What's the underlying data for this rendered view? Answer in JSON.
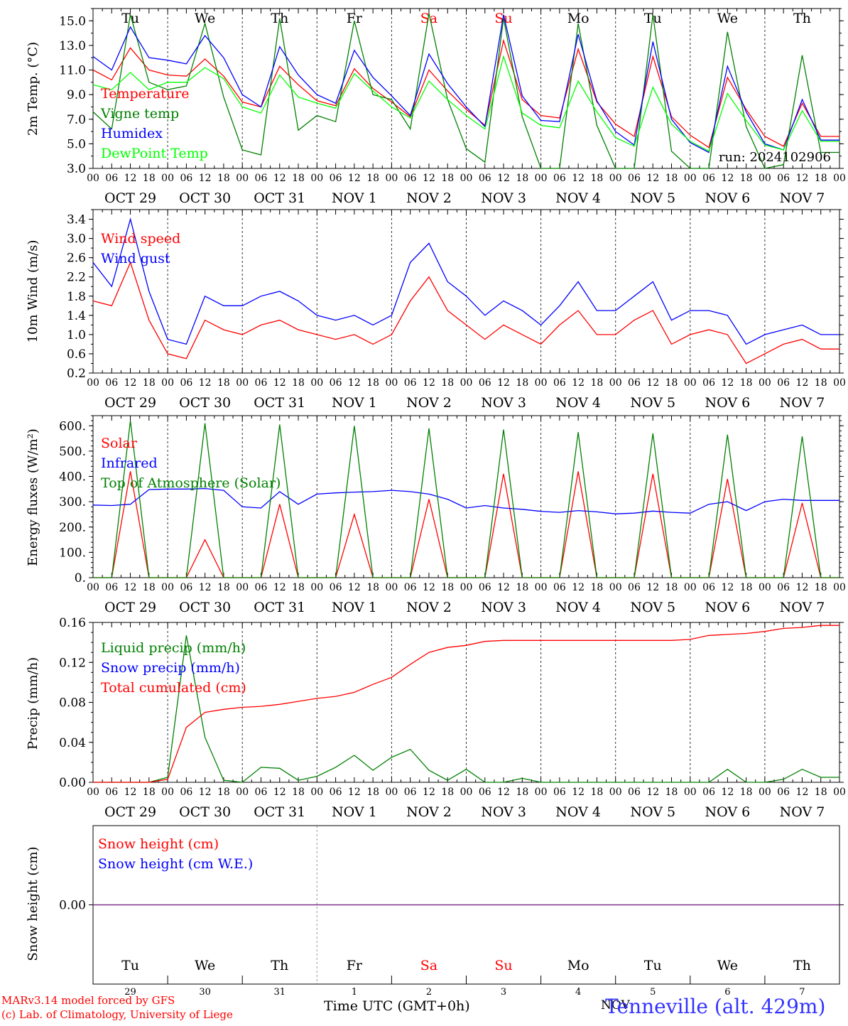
{
  "chart_data": [
    {
      "type": "line",
      "ylabel": "2m Temp. (°C)",
      "ylim": [
        3.0,
        16.0
      ],
      "yticks": [
        "3.0",
        "5.0",
        "7.0",
        "9.0",
        "11.0",
        "13.0",
        "15.0"
      ],
      "legend": [
        "Temperature",
        "Vigne temp",
        "Humidex",
        "DewPoint Temp"
      ],
      "legend_placement": "left",
      "run_label": "run: 2024102906",
      "x_hours": [
        0,
        6,
        12,
        18,
        24,
        30,
        36,
        42,
        48,
        54,
        60,
        66,
        72,
        78,
        84,
        90,
        96,
        102,
        108,
        114,
        120,
        126,
        132,
        138,
        144,
        150,
        156,
        162,
        168,
        174,
        180,
        186,
        192,
        198,
        204,
        210,
        216,
        222,
        228,
        234
      ],
      "series": [
        {
          "name": "Temperature",
          "color": "#ff0000",
          "values": [
            11.0,
            10.2,
            12.8,
            11.0,
            10.6,
            10.5,
            11.9,
            10.5,
            8.4,
            8.0,
            11.3,
            9.8,
            8.5,
            8.1,
            11.1,
            9.5,
            8.4,
            7.2,
            11.0,
            9.3,
            7.8,
            6.5,
            13.4,
            8.6,
            7.3,
            7.1,
            12.7,
            8.4,
            6.6,
            5.6,
            12.1,
            7.2,
            5.7,
            4.7,
            10.4,
            7.8,
            5.6,
            4.8,
            8.3,
            5.6
          ]
        },
        {
          "name": "Vigne temp",
          "color": "#008000",
          "values": [
            7.6,
            6.2,
            15.5,
            10.0,
            9.4,
            9.7,
            14.8,
            8.8,
            4.5,
            4.1,
            15.2,
            6.1,
            7.3,
            6.8,
            15.0,
            9.0,
            8.6,
            6.2,
            15.6,
            8.6,
            4.6,
            3.5,
            15.2,
            7.2,
            3.0,
            3.0,
            14.8,
            6.5,
            3.0,
            3.0,
            15.5,
            4.4,
            3.0,
            3.0,
            14.1,
            6.4,
            3.0,
            3.3,
            12.2,
            4.3
          ]
        },
        {
          "name": "Humidex",
          "color": "#0000ff",
          "values": [
            12.1,
            11.0,
            14.5,
            12.0,
            11.8,
            11.5,
            13.8,
            12.0,
            9.0,
            8.0,
            12.9,
            10.6,
            9.0,
            8.3,
            12.6,
            10.4,
            8.9,
            7.3,
            12.3,
            9.9,
            8.0,
            6.4,
            15.5,
            8.9,
            6.9,
            6.8,
            13.9,
            8.5,
            6.0,
            4.9,
            13.3,
            7.0,
            5.1,
            4.3,
            11.3,
            7.6,
            5.0,
            4.5,
            8.6,
            5.3
          ]
        },
        {
          "name": "DewPoint Temp",
          "color": "#00ff00",
          "values": [
            9.8,
            9.4,
            10.8,
            9.4,
            10.0,
            10.0,
            11.2,
            10.3,
            8.0,
            7.5,
            10.6,
            8.8,
            8.3,
            7.9,
            10.7,
            9.3,
            8.0,
            7.1,
            10.1,
            8.6,
            7.3,
            6.2,
            12.1,
            7.5,
            6.5,
            6.3,
            10.1,
            7.6,
            5.5,
            4.8,
            9.6,
            6.6,
            5.2,
            4.4,
            9.1,
            6.9,
            4.9,
            4.5,
            7.7,
            5.2
          ]
        }
      ]
    },
    {
      "type": "line",
      "ylabel": "10m Wind (m/s)",
      "ylim": [
        0.2,
        3.6
      ],
      "yticks": [
        "0.2",
        "0.6",
        "1.0",
        "1.4",
        "1.8",
        "2.2",
        "2.6",
        "3.0",
        "3.4"
      ],
      "legend": [
        "Wind speed",
        "Wind gust"
      ],
      "legend_placement": "left",
      "x_hours": [
        0,
        6,
        12,
        18,
        24,
        30,
        36,
        42,
        48,
        54,
        60,
        66,
        72,
        78,
        84,
        90,
        96,
        102,
        108,
        114,
        120,
        126,
        132,
        138,
        144,
        150,
        156,
        162,
        168,
        174,
        180,
        186,
        192,
        198,
        204,
        210,
        216,
        222,
        228,
        234
      ],
      "series": [
        {
          "name": "Wind speed",
          "color": "#ff0000",
          "values": [
            1.7,
            1.6,
            2.5,
            1.3,
            0.6,
            0.5,
            1.3,
            1.1,
            1.0,
            1.2,
            1.3,
            1.1,
            1.0,
            0.9,
            1.0,
            0.8,
            1.0,
            1.7,
            2.2,
            1.5,
            1.2,
            0.9,
            1.2,
            1.0,
            0.8,
            1.2,
            1.5,
            1.0,
            1.0,
            1.3,
            1.5,
            0.8,
            1.0,
            1.1,
            1.0,
            0.4,
            0.6,
            0.8,
            0.9,
            0.7
          ]
        },
        {
          "name": "Wind gust",
          "color": "#0000ff",
          "values": [
            2.5,
            2.0,
            3.4,
            1.9,
            0.9,
            0.8,
            1.8,
            1.6,
            1.6,
            1.8,
            1.9,
            1.7,
            1.4,
            1.3,
            1.4,
            1.2,
            1.4,
            2.5,
            2.9,
            2.1,
            1.8,
            1.4,
            1.7,
            1.5,
            1.2,
            1.6,
            2.1,
            1.5,
            1.5,
            1.8,
            2.1,
            1.3,
            1.5,
            1.5,
            1.4,
            0.8,
            1.0,
            1.1,
            1.2,
            1.0
          ]
        }
      ]
    },
    {
      "type": "line",
      "ylabel": "Energy fluxes (W/m²)",
      "ylim": [
        0,
        640
      ],
      "yticks": [
        "0.",
        "100.",
        "200.",
        "300.",
        "400.",
        "500.",
        "600."
      ],
      "legend": [
        "Solar",
        "Infrared",
        "Top of Atmosphere (Solar)"
      ],
      "legend_placement": "left",
      "x_hours": [
        0,
        6,
        12,
        18,
        24,
        30,
        36,
        42,
        48,
        54,
        60,
        66,
        72,
        78,
        84,
        90,
        96,
        102,
        108,
        114,
        120,
        126,
        132,
        138,
        144,
        150,
        156,
        162,
        168,
        174,
        180,
        186,
        192,
        198,
        204,
        210,
        216,
        222,
        228,
        234
      ],
      "series": [
        {
          "name": "Solar",
          "color": "#ff0000",
          "values": [
            0,
            0,
            420,
            0,
            0,
            0,
            150,
            0,
            0,
            0,
            290,
            0,
            0,
            0,
            250,
            0,
            0,
            0,
            310,
            0,
            0,
            0,
            410,
            0,
            0,
            0,
            420,
            0,
            0,
            0,
            410,
            0,
            0,
            0,
            390,
            0,
            0,
            0,
            295,
            0
          ]
        },
        {
          "name": "Infrared",
          "color": "#0000ff",
          "values": [
            287,
            285,
            290,
            348,
            350,
            350,
            352,
            345,
            280,
            275,
            340,
            290,
            330,
            335,
            338,
            340,
            345,
            340,
            330,
            310,
            275,
            285,
            275,
            270,
            262,
            258,
            265,
            260,
            252,
            255,
            263,
            258,
            255,
            290,
            300,
            265,
            300,
            310,
            305,
            305
          ]
        },
        {
          "name": "Top of Atmosphere (Solar)",
          "color": "#008000",
          "values": [
            0,
            0,
            620,
            0,
            0,
            0,
            610,
            0,
            0,
            0,
            605,
            0,
            0,
            0,
            600,
            0,
            0,
            0,
            590,
            0,
            0,
            0,
            585,
            0,
            0,
            0,
            575,
            0,
            0,
            0,
            570,
            0,
            0,
            0,
            565,
            0,
            0,
            0,
            558,
            0
          ]
        }
      ]
    },
    {
      "type": "line",
      "ylabel": "Precip (mm/h)",
      "ylim": [
        0,
        0.16
      ],
      "yticks": [
        "0.00",
        "0.04",
        "0.08",
        "0.12",
        "0.16"
      ],
      "legend": [
        "Liquid precip (mm/h)",
        "Snow precip (mm/h)",
        "Total cumulated (cm)"
      ],
      "legend_placement": "left",
      "x_hours": [
        0,
        6,
        12,
        18,
        24,
        30,
        36,
        42,
        48,
        54,
        60,
        66,
        72,
        78,
        84,
        90,
        96,
        102,
        108,
        114,
        120,
        126,
        132,
        138,
        144,
        150,
        156,
        162,
        168,
        174,
        180,
        186,
        192,
        198,
        204,
        210,
        216,
        222,
        228,
        234
      ],
      "series": [
        {
          "name": "Liquid precip (mm/h)",
          "color": "#008000",
          "values": [
            0,
            0,
            0,
            0,
            0.005,
            0.147,
            0.045,
            0.002,
            0,
            0.015,
            0.014,
            0.002,
            0.006,
            0.015,
            0.027,
            0.012,
            0.025,
            0.033,
            0.012,
            0.002,
            0.013,
            0,
            0,
            0.004,
            0,
            0,
            0,
            0,
            0,
            0,
            0,
            0,
            0,
            0,
            0.013,
            0,
            0,
            0.003,
            0.013,
            0.005
          ]
        },
        {
          "name": "Snow precip (mm/h)",
          "color": "#0000ff",
          "values": [
            0,
            0,
            0,
            0,
            0,
            0,
            0,
            0,
            0,
            0,
            0,
            0,
            0,
            0,
            0,
            0,
            0,
            0,
            0,
            0,
            0,
            0,
            0,
            0,
            0,
            0,
            0,
            0,
            0,
            0,
            0,
            0,
            0,
            0,
            0,
            0,
            0,
            0,
            0,
            0
          ]
        },
        {
          "name": "Total cumulated (cm)",
          "color": "#ff0000",
          "values": [
            0,
            0,
            0,
            0,
            0.003,
            0.055,
            0.07,
            0.073,
            0.075,
            0.076,
            0.078,
            0.081,
            0.084,
            0.086,
            0.09,
            0.098,
            0.105,
            0.118,
            0.13,
            0.135,
            0.137,
            0.141,
            0.142,
            0.142,
            0.142,
            0.142,
            0.142,
            0.142,
            0.142,
            0.142,
            0.142,
            0.142,
            0.143,
            0.147,
            0.148,
            0.149,
            0.151,
            0.154,
            0.155,
            0.157
          ]
        }
      ]
    },
    {
      "type": "line",
      "ylabel": "Snow height (cm)",
      "yticks": [
        "0.00"
      ],
      "legend": [
        "Snow height (cm)",
        "Snow height (cm W.E.)"
      ],
      "legend_placement": "left",
      "series": [
        {
          "name": "Snow height (cm)",
          "color": "#ff0000",
          "values": [
            0,
            0
          ]
        },
        {
          "name": "Snow height (cm W.E.)",
          "color": "#0000ff",
          "values": [
            0,
            0
          ]
        }
      ]
    }
  ],
  "x_axis": {
    "hour_ticks": [
      "00",
      "06",
      "12",
      "18"
    ],
    "end_tick": "00",
    "dates": [
      "OCT 29",
      "OCT 30",
      "OCT 31",
      "NOV  1",
      "NOV  2",
      "NOV  3",
      "NOV  4",
      "NOV  5",
      "NOV  6",
      "NOV  7"
    ],
    "weekdays": [
      "Tu",
      "We",
      "Th",
      "Fr",
      "Sa",
      "Su",
      "Mo",
      "Tu",
      "We",
      "Th"
    ],
    "weekend_days": [
      4,
      5
    ],
    "day_numbers": [
      "29",
      "30",
      "31",
      "1",
      "2",
      "3",
      "4",
      "5",
      "6",
      "7"
    ],
    "month_label": "NOV",
    "time_label": "Time UTC (GMT+0h)"
  },
  "footer": {
    "model_line": "MARv3.14 model forced by GFS",
    "copyright_line": "(c) Lab. of Climatology, University of Liege",
    "location": "Tenneville (alt. 429m)"
  },
  "colors": {
    "weekend": "#ff0000",
    "weekday": "#000000",
    "location": "#3333ff"
  }
}
